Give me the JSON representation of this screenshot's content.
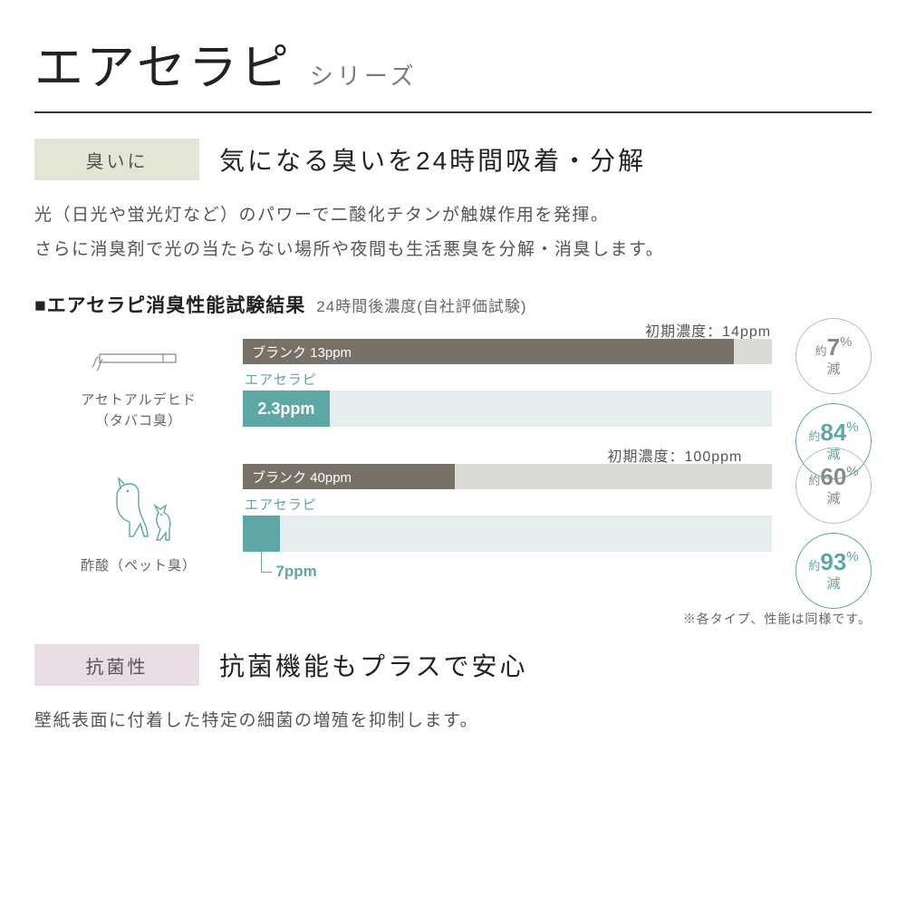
{
  "title": {
    "main": "エアセラピ",
    "sub": "シリーズ"
  },
  "section1": {
    "tag": "臭いに",
    "tag_bg": "#e1e7d4",
    "heading": "気になる臭いを24時間吸着・分解",
    "body": "光（日光や蛍光灯など）のパワーで二酸化チタンが触媒作用を発揮。\nさらに消臭剤で光の当たらない場所や夜間も生活悪臭を分解・消臭します。"
  },
  "chart": {
    "title_prefix": "■",
    "title": "エアセラピ消臭性能試験結果",
    "subtitle": "24時間後濃度(自社評価試験)",
    "bar_track_color": "#dcdad7",
    "blank_bar_color": "#787168",
    "product_bar_color": "#5da7a5",
    "arrow_color": "#e4eeee",
    "product_name_color": "#5da7a5",
    "badge_gray_border": "#bdbdbd",
    "badge_gray_text": "#8a8a8a",
    "badge_teal_border": "#5da7a5",
    "badge_teal_text": "#5da7a5",
    "items": [
      {
        "icon": "cigarette",
        "label_line1": "アセトアルデヒド",
        "label_line2": "（タバコ臭）",
        "initial_label": "初期濃度：14ppm",
        "initial_value_ppm": 14,
        "blank_label": "ブランク 13ppm",
        "blank_value_ppm": 13,
        "blank_pct_of_track": 92.8,
        "product_name": "エアセラピ",
        "product_value_label": "2.3ppm",
        "product_value_ppm": 2.3,
        "product_pct_of_track": 16.4,
        "below_pointer_value": null,
        "badge_gray": {
          "top": "約",
          "num": "7",
          "pct": "%",
          "bot": "減"
        },
        "badge_teal": {
          "top": "約",
          "num": "84",
          "pct": "%",
          "bot": "減"
        },
        "initial_label_offset_pct": 64
      },
      {
        "icon": "pets",
        "label_line1": "酢酸（ペット臭）",
        "label_line2": "",
        "initial_label": "初期濃度：100ppm",
        "initial_value_ppm": 100,
        "blank_label": "ブランク 40ppm",
        "blank_value_ppm": 40,
        "blank_pct_of_track": 40,
        "product_name": "エアセラピ",
        "product_value_label": "",
        "product_value_ppm": 7,
        "product_pct_of_track": 7,
        "below_pointer_value": "7ppm",
        "badge_gray": {
          "top": "約",
          "num": "60",
          "pct": "%",
          "bot": "減"
        },
        "badge_teal": {
          "top": "約",
          "num": "93",
          "pct": "%",
          "bot": "減"
        },
        "initial_label_offset_pct": 58
      }
    ],
    "footnote": "※各タイプ、性能は同様です。"
  },
  "section2": {
    "tag": "抗菌性",
    "tag_bg": "#eadce4",
    "heading": "抗菌機能もプラスで安心",
    "body": "壁紙表面に付着した特定の細菌の増殖を抑制します。"
  }
}
